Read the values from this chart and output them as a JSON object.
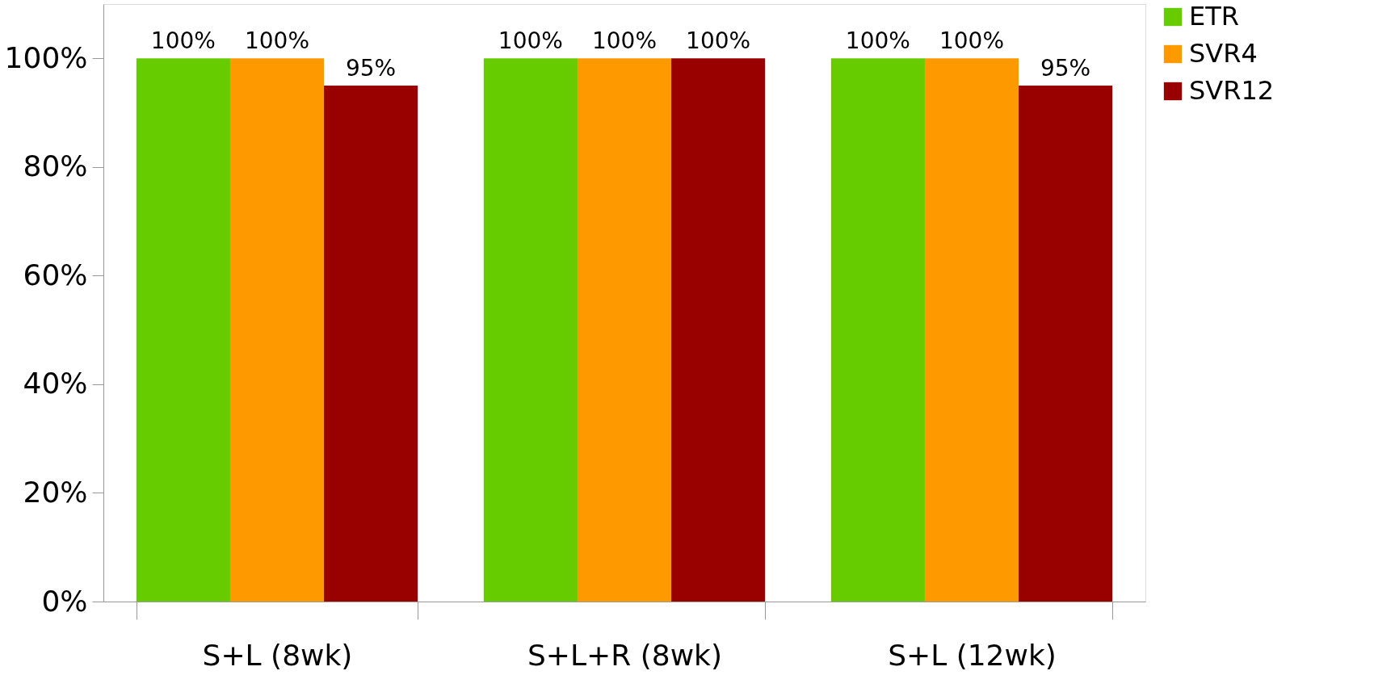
{
  "chart_data": {
    "type": "bar",
    "categories": [
      "S+L (8wk)",
      "S+L+R (8wk)",
      "S+L (12wk)"
    ],
    "series": [
      {
        "name": "ETR",
        "color": "#66cc00",
        "values": [
          100,
          100,
          100
        ],
        "value_labels": [
          "100%",
          "100%",
          "100%"
        ]
      },
      {
        "name": "SVR4",
        "color": "#ff9900",
        "values": [
          100,
          100,
          100
        ],
        "value_labels": [
          "100%",
          "100%",
          "100%"
        ]
      },
      {
        "name": "SVR12",
        "color": "#990000",
        "values": [
          95,
          100,
          95
        ],
        "value_labels": [
          "95%",
          "100%",
          "95%"
        ]
      }
    ],
    "ylim": [
      0,
      110
    ],
    "yticks": [
      {
        "value": 0,
        "label": "0%"
      },
      {
        "value": 20,
        "label": "20%"
      },
      {
        "value": 40,
        "label": "40%"
      },
      {
        "value": 60,
        "label": "60%"
      },
      {
        "value": 80,
        "label": "80%"
      },
      {
        "value": 100,
        "label": "100%"
      }
    ],
    "grid": false,
    "legend": "right"
  }
}
